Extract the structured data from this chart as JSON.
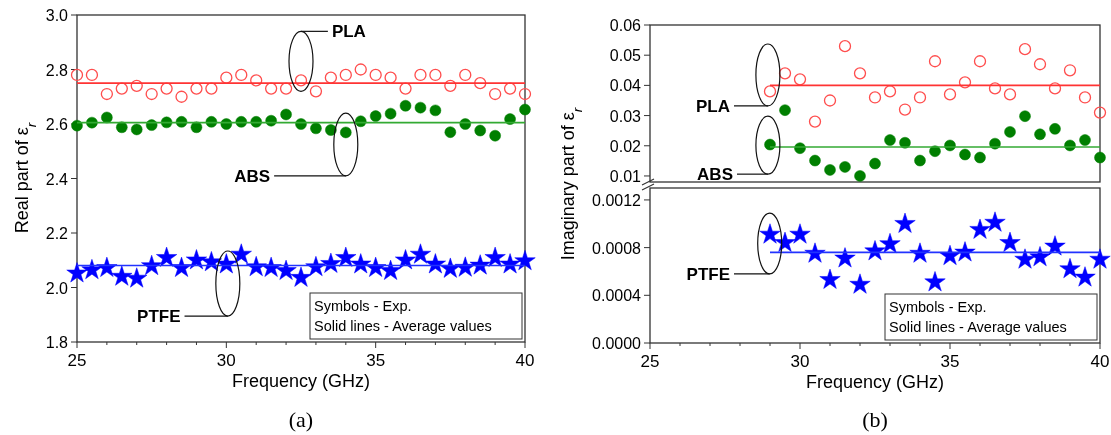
{
  "chart_data": [
    {
      "type": "scatter",
      "xlabel": "Frequency (GHz)",
      "ylabel": "Real part of ε$_{r}$",
      "xlim": [
        25,
        40
      ],
      "ylim": [
        1.8,
        3.0
      ],
      "xticks": [
        25,
        {
          "value": 26,
          "label": null
        },
        {
          "value": 27,
          "label": null
        },
        {
          "value": 28,
          "label": null
        },
        {
          "value": 29,
          "label": null
        },
        30,
        {
          "value": 31,
          "label": null
        },
        {
          "value": 32,
          "label": null
        },
        {
          "value": 33,
          "label": null
        },
        {
          "value": 34,
          "label": null
        },
        35,
        {
          "value": 36,
          "label": null
        },
        {
          "value": 37,
          "label": null
        },
        {
          "value": 38,
          "label": null
        },
        {
          "value": 39,
          "label": null
        },
        40
      ],
      "yticks": [
        1.8,
        {
          "value": 2,
          "label": "2.0"
        },
        2.2,
        2.4,
        2.6,
        2.8,
        {
          "value": 3,
          "label": "3.0"
        }
      ],
      "x": [
        25,
        25.5,
        26,
        26.5,
        27,
        27.5,
        28,
        28.5,
        29,
        29.5,
        30,
        30.5,
        31,
        31.5,
        32,
        32.5,
        33,
        33.5,
        34,
        34.5,
        35,
        35.5,
        36,
        36.5,
        37,
        37.5,
        38,
        38.5,
        39,
        39.5,
        40
      ],
      "series": [
        {
          "name": "PLA",
          "marker": "circle",
          "color": "#ff4d4d",
          "values": [
            2.78,
            2.78,
            2.71,
            2.73,
            2.74,
            2.71,
            2.73,
            2.7,
            2.73,
            2.73,
            2.77,
            2.78,
            2.76,
            2.73,
            2.73,
            2.76,
            2.72,
            2.77,
            2.78,
            2.8,
            2.78,
            2.77,
            2.73,
            2.78,
            2.78,
            2.74,
            2.78,
            2.75,
            2.71,
            2.73,
            2.71
          ]
        },
        {
          "type": "line",
          "color": "#ff3333",
          "x": [
            25,
            40
          ],
          "values": [
            2.75,
            2.75
          ]
        },
        {
          "name": "ABS",
          "marker": "circle",
          "color": "#007f00",
          "values": [
            2.594,
            2.605,
            2.624,
            2.588,
            2.58,
            2.596,
            2.606,
            2.608,
            2.588,
            2.608,
            2.6,
            2.608,
            2.608,
            2.612,
            2.635,
            2.6,
            2.584,
            2.578,
            2.569,
            2.61,
            2.629,
            2.638,
            2.667,
            2.66,
            2.65,
            2.57,
            2.6,
            2.576,
            2.557,
            2.618,
            2.653
          ]
        },
        {
          "type": "line",
          "color": "#33aa33",
          "x": [
            25,
            40
          ],
          "values": [
            2.605,
            2.605
          ]
        },
        {
          "name": "PTFE",
          "marker": "star",
          "color": "#0000ff",
          "values": [
            2.052,
            2.064,
            2.072,
            2.04,
            2.033,
            2.079,
            2.109,
            2.072,
            2.1,
            2.093,
            2.085,
            2.121,
            2.075,
            2.072,
            2.061,
            2.036,
            2.075,
            2.087,
            2.109,
            2.085,
            2.072,
            2.061,
            2.1,
            2.121,
            2.085,
            2.069,
            2.073,
            2.081,
            2.109,
            2.085,
            2.097
          ]
        },
        {
          "type": "line",
          "color": "#2233ff",
          "x": [
            25,
            40
          ],
          "values": [
            2.081,
            2.081
          ]
        }
      ],
      "annotations": [
        "Symbols - Exp.",
        "Solid lines - Average values",
        "(a)"
      ]
    },
    {
      "type": "scatter",
      "ylabel": "Imaginary part of ε$_{r}$",
      "xlim": [
        25,
        40
      ],
      "ylim": [
        0.008,
        0.06
      ],
      "tick_labels": "y",
      "yticks": [
        0.01,
        0.02,
        0.03,
        0.04,
        0.05,
        0.06
      ],
      "x": [
        29,
        29.5,
        30,
        30.5,
        31,
        31.5,
        32,
        32.5,
        33,
        33.5,
        34,
        34.5,
        35,
        35.5,
        36,
        36.5,
        37,
        37.5,
        38,
        38.5,
        39,
        39.5,
        40
      ],
      "series": [
        {
          "name": "PLA",
          "marker": "circle",
          "color": "#ff4d4d",
          "values": [
            0.038,
            0.044,
            0.042,
            0.028,
            0.035,
            0.053,
            0.044,
            0.036,
            0.038,
            0.032,
            0.036,
            0.048,
            0.037,
            0.041,
            0.048,
            0.039,
            0.037,
            0.052,
            0.047,
            0.039,
            0.045,
            0.036,
            0.031
          ]
        },
        {
          "type": "line",
          "color": "#ff3333",
          "x": [
            29,
            40
          ],
          "values": [
            0.04,
            0.04
          ]
        },
        {
          "name": "ABS",
          "marker": "circle",
          "color": "#007f00",
          "values": [
            0.0204,
            0.0318,
            0.0192,
            0.0151,
            0.012,
            0.013,
            0.01,
            0.0141,
            0.0219,
            0.021,
            0.0151,
            0.0182,
            0.0201,
            0.0171,
            0.0161,
            0.0207,
            0.0246,
            0.0298,
            0.0238,
            0.0256,
            0.0201,
            0.0219,
            0.0161
          ]
        },
        {
          "type": "line",
          "color": "#33aa33",
          "x": [
            29,
            40
          ],
          "values": [
            0.0196,
            0.0196
          ]
        }
      ]
    },
    {
      "type": "scatter",
      "xlabel": "Frequency (GHz)",
      "xlim": [
        25,
        40
      ],
      "ylim": [
        0,
        0.0013
      ],
      "xticks": [
        25,
        {
          "value": 26,
          "label": null
        },
        {
          "value": 27,
          "label": null
        },
        {
          "value": 28,
          "label": null
        },
        {
          "value": 29,
          "label": null
        },
        30,
        {
          "value": 31,
          "label": null
        },
        {
          "value": 32,
          "label": null
        },
        {
          "value": 33,
          "label": null
        },
        {
          "value": 34,
          "label": null
        },
        35,
        {
          "value": 36,
          "label": null
        },
        {
          "value": 37,
          "label": null
        },
        {
          "value": 38,
          "label": null
        },
        {
          "value": 39,
          "label": null
        },
        40
      ],
      "yticks": [
        {
          "value": 0,
          "label": "0.0000"
        },
        {
          "value": 0.0004,
          "label": "0.0004"
        },
        {
          "value": 0.0008,
          "label": "0.0008"
        },
        {
          "value": 0.0012,
          "label": "0.0012"
        }
      ],
      "x": [
        29,
        29.5,
        30,
        30.5,
        31,
        31.5,
        32,
        32.5,
        33,
        33.5,
        34,
        34.5,
        35,
        35.5,
        36,
        36.5,
        37,
        37.5,
        38,
        38.5,
        39,
        39.5,
        40
      ],
      "series": [
        {
          "name": "PTFE",
          "marker": "star",
          "color": "#0000ff",
          "values": [
            0.00091,
            0.00084,
            0.00091,
            0.00075,
            0.00053,
            0.00071,
            0.00049,
            0.00077,
            0.00083,
            0.001,
            0.00075,
            0.00051,
            0.00073,
            0.00076,
            0.00095,
            0.00101,
            0.00084,
            0.0007,
            0.00072,
            0.00081,
            0.00062,
            0.00055,
            0.0007
          ]
        },
        {
          "type": "line",
          "color": "#2233ff",
          "x": [
            29,
            40
          ],
          "values": [
            0.00076,
            0.00076
          ]
        }
      ],
      "annotations": [
        "Symbols - Exp.",
        "Solid lines - Average values",
        "(b)"
      ]
    }
  ]
}
